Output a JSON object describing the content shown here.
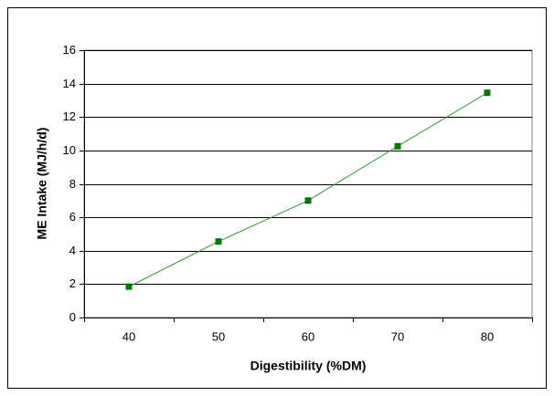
{
  "chart_data": {
    "type": "line",
    "x_label": "Digestibility (%DM)",
    "y_label": "ME Intake (MJ/h/d)",
    "categories": [
      40,
      50,
      60,
      70,
      80
    ],
    "values": [
      1.85,
      4.55,
      7.0,
      10.25,
      13.45
    ],
    "color": "#339933",
    "marker_color": "#007700",
    "ylim": [
      0,
      16
    ],
    "yticks": [
      0,
      2,
      4,
      6,
      8,
      10,
      12,
      14,
      16
    ],
    "grid": true
  }
}
